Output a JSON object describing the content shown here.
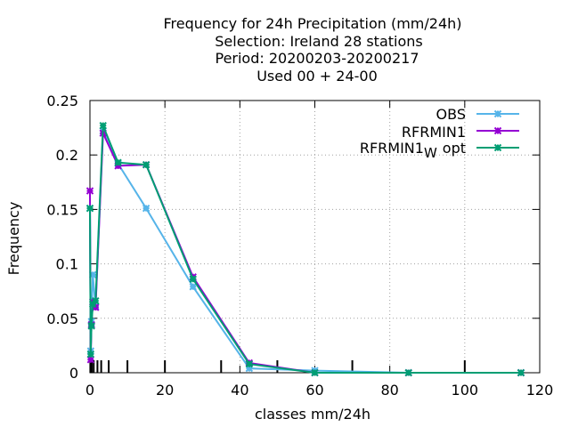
{
  "chart_data": {
    "type": "line",
    "title": [
      "Frequency  for 24h Precipitation (mm/24h)",
      "Selection: Ireland     28 stations",
      "Period: 20200203-20200217",
      "Used  00  + 24-00"
    ],
    "xlabel": "classes mm/24h",
    "ylabel": "Frequency",
    "xlim": [
      0,
      120
    ],
    "ylim": [
      0,
      0.25
    ],
    "x_ticks": [
      0,
      20,
      40,
      60,
      80,
      100,
      120
    ],
    "x_tick_labels": [
      "0",
      "20",
      "40",
      "60",
      "80",
      "100",
      "120"
    ],
    "y_ticks": [
      0,
      0.05,
      0.1,
      0.15,
      0.2,
      0.25
    ],
    "y_tick_labels": [
      "0",
      "0.05",
      "0.1",
      "0.15",
      "0.2",
      "0.25"
    ],
    "grid": true,
    "legend_position": "top-right",
    "class_limits": [
      0.1,
      0.3,
      0.5,
      1,
      2,
      3,
      5,
      10,
      20,
      35,
      50,
      70,
      100
    ],
    "series": [
      {
        "name": "OBS",
        "color": "#56b4e9",
        "x": [
          0,
          0.2,
          0.4,
          0.75,
          1.5,
          3.5,
          7.5,
          15,
          27.5,
          42.5,
          60,
          85,
          115
        ],
        "y": [
          0.151,
          0.02,
          0.047,
          0.09,
          0.061,
          0.222,
          0.192,
          0.151,
          0.079,
          0.004,
          0.002,
          0.0,
          0.0
        ]
      },
      {
        "name": "RFRMIN1",
        "color": "#9400d3",
        "x": [
          0,
          0.2,
          0.4,
          0.75,
          1.5,
          3.5,
          7.5,
          15,
          27.5,
          42.5,
          60,
          85,
          115
        ],
        "y": [
          0.167,
          0.012,
          0.044,
          0.065,
          0.06,
          0.22,
          0.19,
          0.191,
          0.088,
          0.009,
          0.0,
          0.0,
          0.0
        ]
      },
      {
        "name": "RFRMIN1_W opt",
        "color": "#009e73",
        "x": [
          0,
          0.2,
          0.4,
          0.75,
          1.5,
          3.5,
          7.5,
          15,
          27.5,
          42.5,
          60,
          85,
          115
        ],
        "y": [
          0.151,
          0.017,
          0.043,
          0.063,
          0.066,
          0.227,
          0.193,
          0.191,
          0.086,
          0.008,
          0.0,
          0.0,
          0.0
        ]
      }
    ]
  },
  "legend": {
    "obs": "OBS",
    "rfrmin1": "RFRMIN1",
    "rfrmin1w_base": "RFRMIN1",
    "rfrmin1w_sub": "W",
    "rfrmin1w_rest": "opt"
  }
}
